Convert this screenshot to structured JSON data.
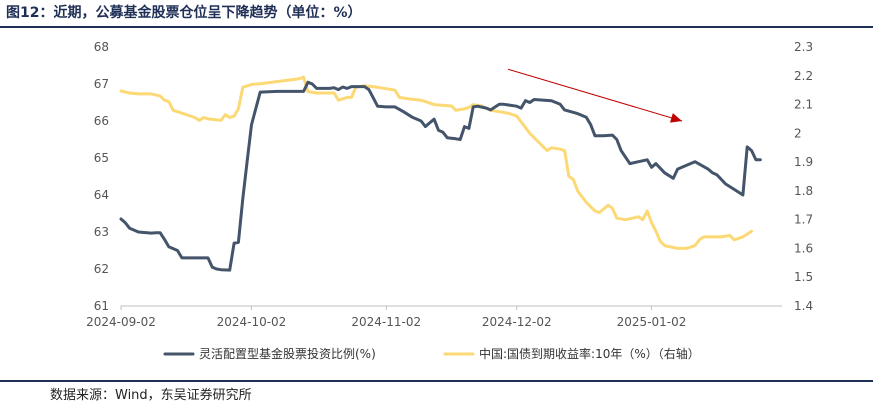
{
  "figure": {
    "title": "图12：近期，公募基金股票仓位呈下降趋势（单位：%）",
    "source": "数据来源：Wind，东吴证券研究所"
  },
  "colors": {
    "primary_series": "#44546a",
    "secondary_series": "#fcd975",
    "arrow": "#c00000",
    "header_rule": "#1f2f56"
  },
  "chart_data": {
    "type": "line",
    "x_ticks": [
      "2024-09-02",
      "2024-10-02",
      "2024-11-02",
      "2024-12-02",
      "2025-01-02"
    ],
    "y_left": {
      "lim": [
        61,
        68
      ],
      "ticks": [
        "61",
        "62",
        "63",
        "64",
        "65",
        "66",
        "67",
        "68"
      ]
    },
    "y_right": {
      "lim": [
        1.4,
        2.3
      ],
      "ticks": [
        "1.4",
        "1.5",
        "1.6",
        "1.7",
        "1.8",
        "1.9",
        "2",
        "2.1",
        "2.2",
        "2.3"
      ]
    },
    "grid": false,
    "legend_position": "bottom",
    "trend_arrow": {
      "from": [
        "2024-11-30",
        67.4
      ],
      "to": [
        "2025-01-09",
        66.0
      ]
    },
    "series": [
      {
        "name": "灵活配置型基金股票投资比例(%)",
        "axis": "left",
        "points": [
          [
            "2024-09-02",
            63.35
          ],
          [
            "2024-09-03",
            63.25
          ],
          [
            "2024-09-04",
            63.1
          ],
          [
            "2024-09-06",
            63.0
          ],
          [
            "2024-09-09",
            62.97
          ],
          [
            "2024-09-10",
            62.98
          ],
          [
            "2024-09-11",
            62.98
          ],
          [
            "2024-09-12",
            62.8
          ],
          [
            "2024-09-13",
            62.6
          ],
          [
            "2024-09-15",
            62.5
          ],
          [
            "2024-09-16",
            62.3
          ],
          [
            "2024-09-18",
            62.3
          ],
          [
            "2024-09-20",
            62.3
          ],
          [
            "2024-09-22",
            62.3
          ],
          [
            "2024-09-23",
            62.05
          ],
          [
            "2024-09-24",
            62.0
          ],
          [
            "2024-09-25",
            61.98
          ],
          [
            "2024-09-27",
            61.97
          ],
          [
            "2024-09-28",
            62.7
          ],
          [
            "2024-09-29",
            62.72
          ],
          [
            "2024-09-30",
            63.9
          ],
          [
            "2024-10-01",
            64.9
          ],
          [
            "2024-10-02",
            65.9
          ],
          [
            "2024-10-04",
            66.78
          ],
          [
            "2024-10-08",
            66.8
          ],
          [
            "2024-10-11",
            66.8
          ],
          [
            "2024-10-14",
            66.8
          ],
          [
            "2024-10-15",
            67.05
          ],
          [
            "2024-10-16",
            67.0
          ],
          [
            "2024-10-17",
            66.88
          ],
          [
            "2024-10-20",
            66.88
          ],
          [
            "2024-10-21",
            66.9
          ],
          [
            "2024-10-22",
            66.85
          ],
          [
            "2024-10-23",
            66.92
          ],
          [
            "2024-10-24",
            66.88
          ],
          [
            "2024-10-25",
            66.93
          ],
          [
            "2024-10-28",
            66.93
          ],
          [
            "2024-10-29",
            66.85
          ],
          [
            "2024-10-31",
            66.4
          ],
          [
            "2024-11-02",
            66.38
          ],
          [
            "2024-11-04",
            66.38
          ],
          [
            "2024-11-06",
            66.25
          ],
          [
            "2024-11-08",
            66.1
          ],
          [
            "2024-11-10",
            66.0
          ],
          [
            "2024-11-11",
            65.85
          ],
          [
            "2024-11-12",
            65.95
          ],
          [
            "2024-11-13",
            66.05
          ],
          [
            "2024-11-14",
            65.75
          ],
          [
            "2024-11-15",
            65.7
          ],
          [
            "2024-11-16",
            65.55
          ],
          [
            "2024-11-18",
            65.52
          ],
          [
            "2024-11-19",
            65.5
          ],
          [
            "2024-11-20",
            65.85
          ],
          [
            "2024-11-21",
            65.8
          ],
          [
            "2024-11-22",
            66.38
          ],
          [
            "2024-11-23",
            66.4
          ],
          [
            "2024-11-25",
            66.35
          ],
          [
            "2024-11-26",
            66.3
          ],
          [
            "2024-11-28",
            66.45
          ],
          [
            "2024-11-29",
            66.45
          ],
          [
            "2024-12-02",
            66.4
          ],
          [
            "2024-12-03",
            66.35
          ],
          [
            "2024-12-04",
            66.55
          ],
          [
            "2024-12-05",
            66.5
          ],
          [
            "2024-12-06",
            66.58
          ],
          [
            "2024-12-10",
            66.55
          ],
          [
            "2024-12-12",
            66.45
          ],
          [
            "2024-12-13",
            66.3
          ],
          [
            "2024-12-16",
            66.2
          ],
          [
            "2024-12-18",
            66.1
          ],
          [
            "2024-12-19",
            65.9
          ],
          [
            "2024-12-20",
            65.6
          ],
          [
            "2024-12-22",
            65.6
          ],
          [
            "2024-12-24",
            65.62
          ],
          [
            "2024-12-25",
            65.5
          ],
          [
            "2024-12-26",
            65.2
          ],
          [
            "2024-12-28",
            64.85
          ],
          [
            "2024-12-30",
            64.9
          ],
          [
            "2025-01-01",
            64.95
          ],
          [
            "2025-01-02",
            64.75
          ],
          [
            "2025-01-03",
            64.85
          ],
          [
            "2025-01-05",
            64.6
          ],
          [
            "2025-01-07",
            64.45
          ],
          [
            "2025-01-08",
            64.7
          ],
          [
            "2025-01-10",
            64.8
          ],
          [
            "2025-01-12",
            64.9
          ],
          [
            "2025-01-15",
            64.7
          ],
          [
            "2025-01-16",
            64.6
          ],
          [
            "2025-01-17",
            64.55
          ],
          [
            "2025-01-19",
            64.3
          ],
          [
            "2025-01-21",
            64.15
          ],
          [
            "2025-01-23",
            64.0
          ],
          [
            "2025-01-24",
            65.3
          ],
          [
            "2025-01-25",
            65.2
          ],
          [
            "2025-01-26",
            64.95
          ],
          [
            "2025-01-27",
            64.95
          ]
        ]
      },
      {
        "name": "中国:国债到期收益率:10年（%）（右轴）",
        "axis": "right",
        "points": [
          [
            "2024-09-02",
            2.147
          ],
          [
            "2024-09-04",
            2.14
          ],
          [
            "2024-09-06",
            2.137
          ],
          [
            "2024-09-09",
            2.137
          ],
          [
            "2024-09-11",
            2.13
          ],
          [
            "2024-09-12",
            2.115
          ],
          [
            "2024-09-13",
            2.11
          ],
          [
            "2024-09-14",
            2.08
          ],
          [
            "2024-09-16",
            2.07
          ],
          [
            "2024-09-19",
            2.055
          ],
          [
            "2024-09-20",
            2.045
          ],
          [
            "2024-09-21",
            2.055
          ],
          [
            "2024-09-22",
            2.05
          ],
          [
            "2024-09-25",
            2.045
          ],
          [
            "2024-09-26",
            2.065
          ],
          [
            "2024-09-27",
            2.055
          ],
          [
            "2024-09-28",
            2.06
          ],
          [
            "2024-09-29",
            2.085
          ],
          [
            "2024-09-30",
            2.16
          ],
          [
            "2024-10-02",
            2.17
          ],
          [
            "2024-10-04",
            2.172
          ],
          [
            "2024-10-08",
            2.18
          ],
          [
            "2024-10-13",
            2.19
          ],
          [
            "2024-10-14",
            2.195
          ],
          [
            "2024-10-15",
            2.145
          ],
          [
            "2024-10-17",
            2.14
          ],
          [
            "2024-10-21",
            2.14
          ],
          [
            "2024-10-22",
            2.115
          ],
          [
            "2024-10-23",
            2.12
          ],
          [
            "2024-10-24",
            2.125
          ],
          [
            "2024-10-25",
            2.125
          ],
          [
            "2024-10-26",
            2.16
          ],
          [
            "2024-10-28",
            2.165
          ],
          [
            "2024-10-31",
            2.16
          ],
          [
            "2024-11-02",
            2.155
          ],
          [
            "2024-11-04",
            2.15
          ],
          [
            "2024-11-05",
            2.125
          ],
          [
            "2024-11-07",
            2.12
          ],
          [
            "2024-11-10",
            2.115
          ],
          [
            "2024-11-13",
            2.1
          ],
          [
            "2024-11-17",
            2.095
          ],
          [
            "2024-11-18",
            2.08
          ],
          [
            "2024-11-20",
            2.085
          ],
          [
            "2024-11-21",
            2.09
          ],
          [
            "2024-11-22",
            2.1
          ],
          [
            "2024-11-24",
            2.095
          ],
          [
            "2024-11-26",
            2.08
          ],
          [
            "2024-11-28",
            2.075
          ],
          [
            "2024-11-30",
            2.07
          ],
          [
            "2024-12-02",
            2.06
          ],
          [
            "2024-12-03",
            2.04
          ],
          [
            "2024-12-05",
            2.0
          ],
          [
            "2024-12-07",
            1.97
          ],
          [
            "2024-12-09",
            1.94
          ],
          [
            "2024-12-10",
            1.95
          ],
          [
            "2024-12-12",
            1.945
          ],
          [
            "2024-12-13",
            1.94
          ],
          [
            "2024-12-14",
            1.85
          ],
          [
            "2024-12-15",
            1.84
          ],
          [
            "2024-12-16",
            1.8
          ],
          [
            "2024-12-18",
            1.76
          ],
          [
            "2024-12-20",
            1.73
          ],
          [
            "2024-12-21",
            1.725
          ],
          [
            "2024-12-23",
            1.75
          ],
          [
            "2024-12-24",
            1.74
          ],
          [
            "2024-12-25",
            1.705
          ],
          [
            "2024-12-27",
            1.7
          ],
          [
            "2024-12-30",
            1.71
          ],
          [
            "2024-12-31",
            1.7
          ],
          [
            "2025-01-01",
            1.73
          ],
          [
            "2025-01-02",
            1.69
          ],
          [
            "2025-01-03",
            1.66
          ],
          [
            "2025-01-04",
            1.625
          ],
          [
            "2025-01-05",
            1.61
          ],
          [
            "2025-01-08",
            1.6
          ],
          [
            "2025-01-10",
            1.6
          ],
          [
            "2025-01-12",
            1.61
          ],
          [
            "2025-01-13",
            1.63
          ],
          [
            "2025-01-14",
            1.64
          ],
          [
            "2025-01-18",
            1.64
          ],
          [
            "2025-01-20",
            1.645
          ],
          [
            "2025-01-21",
            1.63
          ],
          [
            "2025-01-23",
            1.64
          ],
          [
            "2025-01-25",
            1.66
          ]
        ]
      }
    ]
  }
}
